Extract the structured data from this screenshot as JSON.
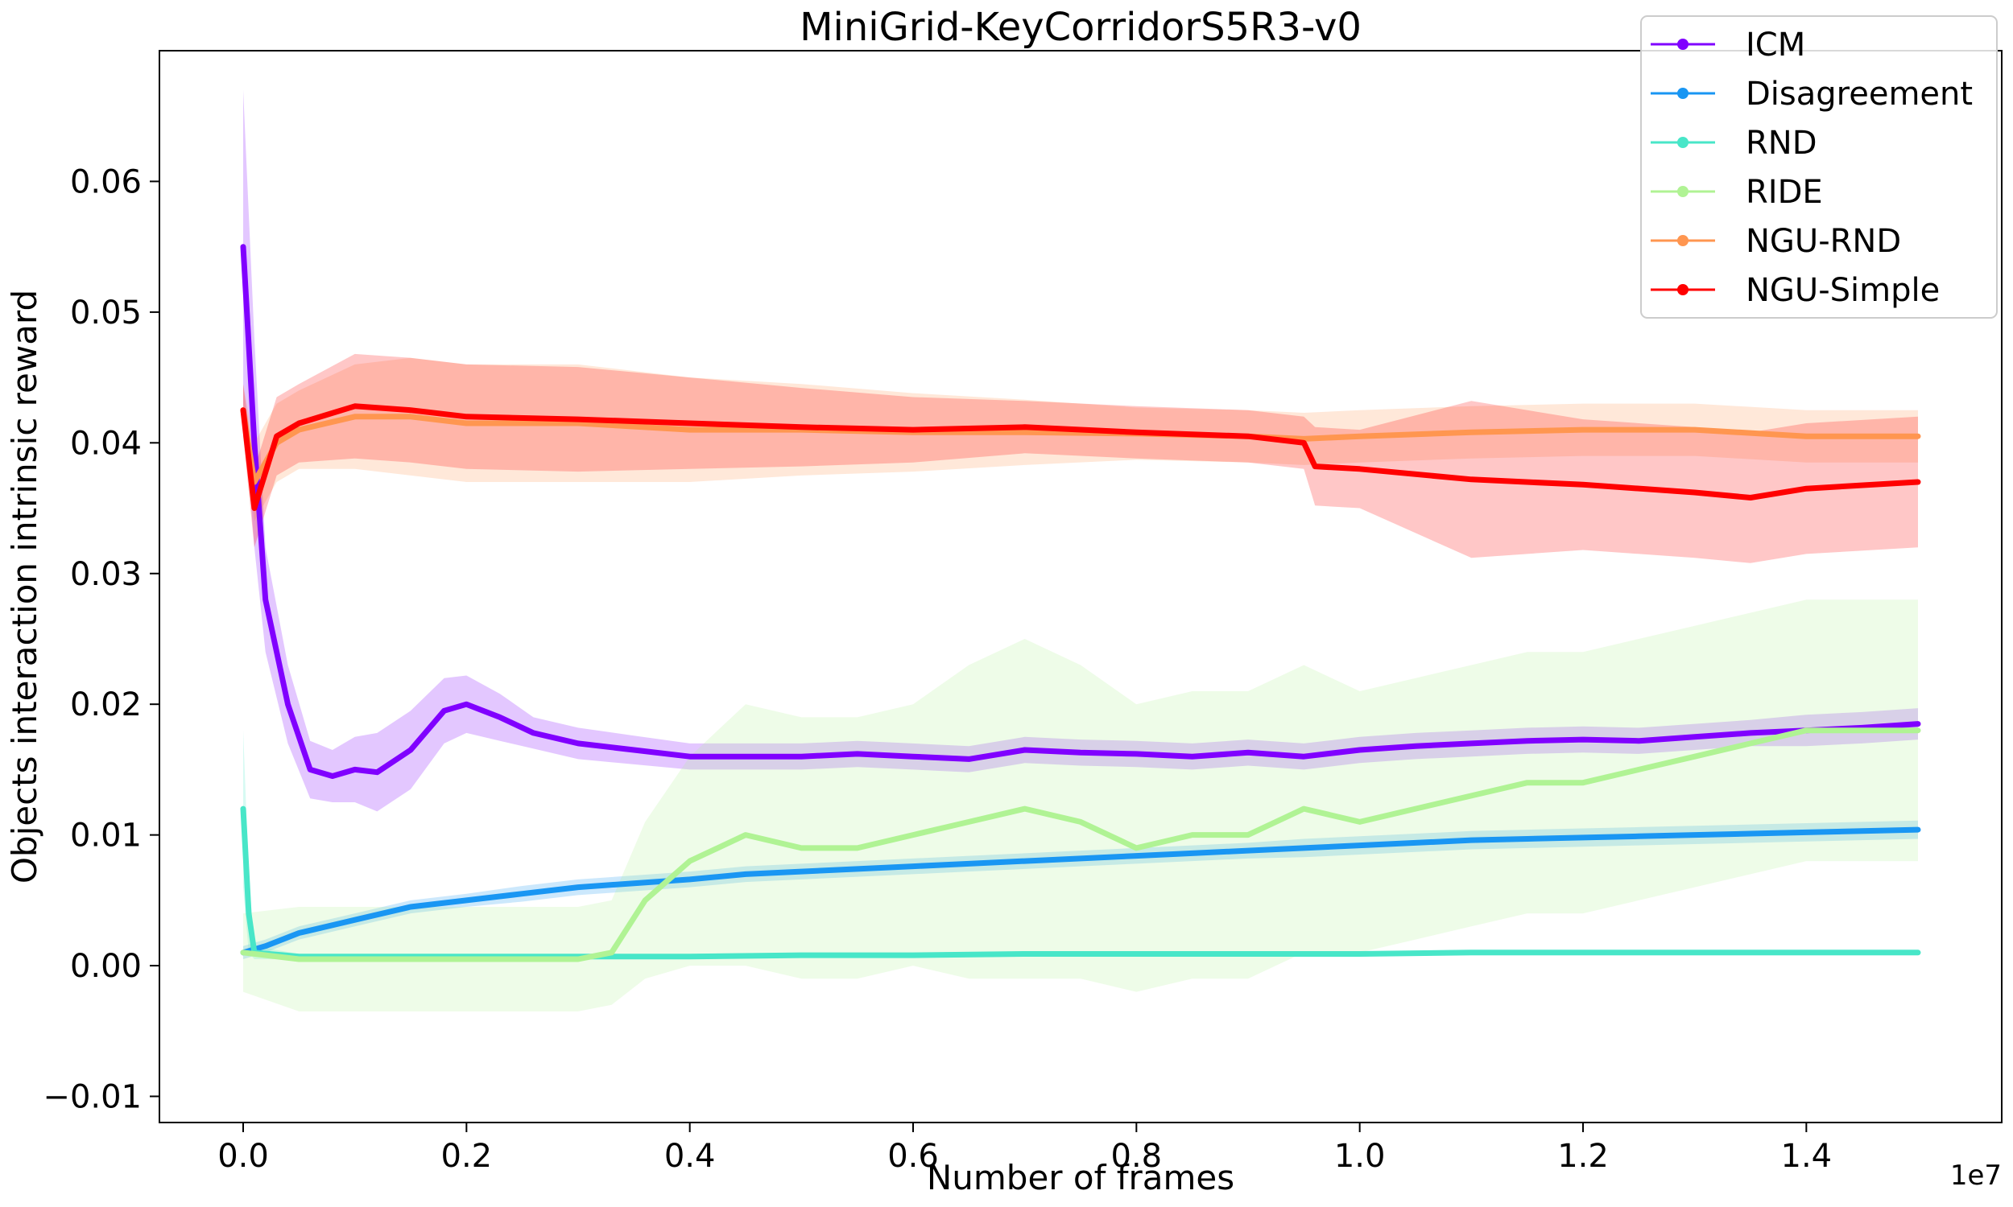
{
  "chart_data": {
    "type": "line",
    "title": "MiniGrid-KeyCorridorS5R3-v0",
    "xlabel": "Number of frames",
    "ylabel": "Objects interaction intrinsic reward",
    "x_exponent_label": "1e7",
    "xlim": [
      -0.075,
      1.575
    ],
    "ylim": [
      -0.012,
      0.07
    ],
    "x_ticks": [
      0.0,
      0.2,
      0.4,
      0.6,
      0.8,
      1.0,
      1.2,
      1.4
    ],
    "x_tick_labels": [
      "0.0",
      "0.2",
      "0.4",
      "0.6",
      "0.8",
      "1.0",
      "1.2",
      "1.4"
    ],
    "y_ticks": [
      -0.01,
      0.0,
      0.01,
      0.02,
      0.03,
      0.04,
      0.05,
      0.06
    ],
    "y_tick_labels": [
      "−0.01",
      "0.00",
      "0.01",
      "0.02",
      "0.03",
      "0.04",
      "0.05",
      "0.06"
    ],
    "grid": false,
    "legend_position": "top-right",
    "series": [
      {
        "name": "ICM",
        "color": "#8000ff",
        "x": [
          0.0,
          0.01,
          0.02,
          0.04,
          0.06,
          0.08,
          0.1,
          0.12,
          0.15,
          0.18,
          0.2,
          0.23,
          0.26,
          0.3,
          0.35,
          0.4,
          0.45,
          0.5,
          0.55,
          0.6,
          0.65,
          0.7,
          0.75,
          0.8,
          0.85,
          0.9,
          0.95,
          1.0,
          1.05,
          1.1,
          1.15,
          1.2,
          1.25,
          1.3,
          1.35,
          1.4,
          1.45,
          1.5
        ],
        "y": [
          0.055,
          0.04,
          0.028,
          0.02,
          0.015,
          0.0145,
          0.015,
          0.0148,
          0.0165,
          0.0195,
          0.02,
          0.019,
          0.0178,
          0.017,
          0.0165,
          0.016,
          0.016,
          0.016,
          0.0162,
          0.016,
          0.0158,
          0.0165,
          0.0163,
          0.0162,
          0.016,
          0.0163,
          0.016,
          0.0165,
          0.0168,
          0.017,
          0.0172,
          0.0173,
          0.0172,
          0.0175,
          0.0178,
          0.018,
          0.0182,
          0.0185
        ],
        "band": [
          0.012,
          0.008,
          0.004,
          0.003,
          0.0022,
          0.002,
          0.0025,
          0.003,
          0.003,
          0.0025,
          0.0022,
          0.0018,
          0.0012,
          0.0012,
          0.0011,
          0.001,
          0.001,
          0.001,
          0.001,
          0.001,
          0.001,
          0.001,
          0.001,
          0.001,
          0.001,
          0.001,
          0.001,
          0.001,
          0.001,
          0.001,
          0.001,
          0.001,
          0.001,
          0.001,
          0.001,
          0.0012,
          0.0012,
          0.0012
        ]
      },
      {
        "name": "Disagreement",
        "color": "#1996f3",
        "x": [
          0.0,
          0.02,
          0.05,
          0.1,
          0.15,
          0.2,
          0.25,
          0.3,
          0.35,
          0.4,
          0.45,
          0.5,
          0.55,
          0.6,
          0.65,
          0.7,
          0.75,
          0.8,
          0.85,
          0.9,
          0.95,
          1.0,
          1.05,
          1.1,
          1.15,
          1.2,
          1.25,
          1.3,
          1.35,
          1.4,
          1.45,
          1.5
        ],
        "y": [
          0.001,
          0.0015,
          0.0025,
          0.0035,
          0.0045,
          0.005,
          0.0055,
          0.006,
          0.0063,
          0.0066,
          0.007,
          0.0072,
          0.0074,
          0.0076,
          0.0078,
          0.008,
          0.0082,
          0.0084,
          0.0086,
          0.0088,
          0.009,
          0.0092,
          0.0094,
          0.0096,
          0.0097,
          0.0098,
          0.0099,
          0.01,
          0.0101,
          0.0102,
          0.0103,
          0.0104
        ],
        "band": [
          0.0005,
          0.0005,
          0.0005,
          0.0005,
          0.0005,
          0.0005,
          0.0006,
          0.0006,
          0.0006,
          0.0006,
          0.0006,
          0.0006,
          0.0006,
          0.0006,
          0.0006,
          0.0006,
          0.0006,
          0.0006,
          0.0006,
          0.0006,
          0.0007,
          0.0007,
          0.0007,
          0.0007,
          0.0007,
          0.0007,
          0.0007,
          0.0007,
          0.0007,
          0.0007,
          0.0007,
          0.0007
        ]
      },
      {
        "name": "RND",
        "color": "#48e6c8",
        "x": [
          0.0,
          0.005,
          0.01,
          0.05,
          0.1,
          0.2,
          0.3,
          0.4,
          0.5,
          0.6,
          0.7,
          0.8,
          0.9,
          1.0,
          1.1,
          1.2,
          1.3,
          1.4,
          1.5
        ],
        "y": [
          0.012,
          0.004,
          0.001,
          0.0007,
          0.0007,
          0.0007,
          0.0007,
          0.0007,
          0.0008,
          0.0008,
          0.0009,
          0.0009,
          0.0009,
          0.0009,
          0.001,
          0.001,
          0.001,
          0.001,
          0.001
        ],
        "band": [
          0.006,
          0.003,
          0.0005,
          0.0002,
          0.0002,
          0.0002,
          0.0002,
          0.0002,
          0.0002,
          0.0002,
          0.0002,
          0.0002,
          0.0002,
          0.0002,
          0.0002,
          0.0002,
          0.0002,
          0.0002,
          0.0002
        ]
      },
      {
        "name": "RIDE",
        "color": "#b0f394",
        "x": [
          0.0,
          0.05,
          0.1,
          0.15,
          0.2,
          0.25,
          0.3,
          0.33,
          0.36,
          0.4,
          0.45,
          0.5,
          0.55,
          0.6,
          0.65,
          0.7,
          0.75,
          0.8,
          0.85,
          0.9,
          0.95,
          1.0,
          1.05,
          1.1,
          1.15,
          1.2,
          1.25,
          1.3,
          1.35,
          1.4,
          1.45,
          1.5
        ],
        "y": [
          0.001,
          0.0005,
          0.0005,
          0.0005,
          0.0005,
          0.0005,
          0.0005,
          0.001,
          0.005,
          0.008,
          0.01,
          0.009,
          0.009,
          0.01,
          0.011,
          0.012,
          0.011,
          0.009,
          0.01,
          0.01,
          0.012,
          0.011,
          0.012,
          0.013,
          0.014,
          0.014,
          0.015,
          0.016,
          0.017,
          0.018,
          0.018,
          0.018
        ],
        "band": [
          0.003,
          0.004,
          0.004,
          0.004,
          0.004,
          0.004,
          0.004,
          0.004,
          0.006,
          0.008,
          0.01,
          0.01,
          0.01,
          0.01,
          0.012,
          0.013,
          0.012,
          0.011,
          0.011,
          0.011,
          0.011,
          0.01,
          0.01,
          0.01,
          0.01,
          0.01,
          0.01,
          0.01,
          0.01,
          0.01,
          0.01,
          0.01
        ]
      },
      {
        "name": "NGU-RND",
        "color": "#ff9650",
        "x": [
          0.0,
          0.01,
          0.03,
          0.05,
          0.1,
          0.15,
          0.2,
          0.3,
          0.4,
          0.5,
          0.6,
          0.7,
          0.8,
          0.9,
          0.95,
          1.0,
          1.1,
          1.2,
          1.3,
          1.4,
          1.5
        ],
        "y": [
          0.0425,
          0.037,
          0.04,
          0.041,
          0.042,
          0.042,
          0.0415,
          0.0415,
          0.041,
          0.041,
          0.0408,
          0.0408,
          0.0407,
          0.0405,
          0.0403,
          0.0405,
          0.0408,
          0.041,
          0.041,
          0.0405,
          0.0405
        ],
        "band": [
          0.002,
          0.003,
          0.003,
          0.003,
          0.004,
          0.0045,
          0.0045,
          0.0045,
          0.004,
          0.0035,
          0.003,
          0.0025,
          0.002,
          0.002,
          0.002,
          0.002,
          0.002,
          0.002,
          0.002,
          0.002,
          0.002
        ]
      },
      {
        "name": "NGU-Simple",
        "color": "#ff0000",
        "x": [
          0.0,
          0.01,
          0.03,
          0.05,
          0.1,
          0.15,
          0.2,
          0.3,
          0.4,
          0.5,
          0.6,
          0.7,
          0.8,
          0.9,
          0.95,
          0.96,
          1.0,
          1.1,
          1.2,
          1.3,
          1.35,
          1.4,
          1.5
        ],
        "y": [
          0.0425,
          0.035,
          0.0405,
          0.0415,
          0.0428,
          0.0425,
          0.042,
          0.0418,
          0.0415,
          0.0412,
          0.041,
          0.0412,
          0.0408,
          0.0405,
          0.04,
          0.0382,
          0.038,
          0.0372,
          0.0368,
          0.0362,
          0.0358,
          0.0365,
          0.037
        ],
        "band": [
          0.002,
          0.003,
          0.003,
          0.003,
          0.004,
          0.004,
          0.004,
          0.004,
          0.0035,
          0.003,
          0.0025,
          0.002,
          0.002,
          0.002,
          0.002,
          0.003,
          0.003,
          0.006,
          0.005,
          0.005,
          0.005,
          0.005,
          0.005
        ]
      }
    ]
  }
}
